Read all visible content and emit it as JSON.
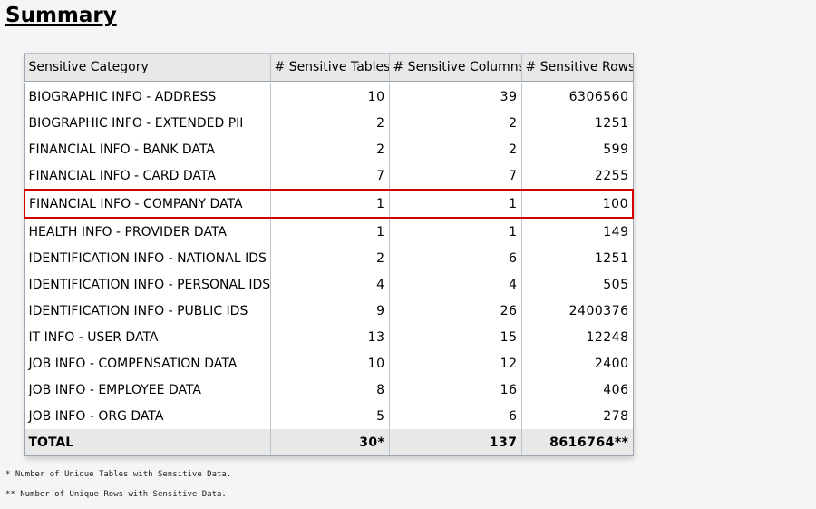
{
  "page": {
    "title": "Summary"
  },
  "table": {
    "headers": [
      "Sensitive Category",
      "# Sensitive Tables",
      "# Sensitive Columns",
      "# Sensitive Rows"
    ],
    "rows": [
      {
        "category": "BIOGRAPHIC INFO - ADDRESS",
        "tables": "10",
        "columns": "39",
        "rows": "6306560",
        "highlighted": false
      },
      {
        "category": "BIOGRAPHIC INFO - EXTENDED PII",
        "tables": "2",
        "columns": "2",
        "rows": "1251",
        "highlighted": false
      },
      {
        "category": "FINANCIAL INFO - BANK DATA",
        "tables": "2",
        "columns": "2",
        "rows": "599",
        "highlighted": false
      },
      {
        "category": "FINANCIAL INFO - CARD DATA",
        "tables": "7",
        "columns": "7",
        "rows": "2255",
        "highlighted": false
      },
      {
        "category": "FINANCIAL INFO - COMPANY DATA",
        "tables": "1",
        "columns": "1",
        "rows": "100",
        "highlighted": true
      },
      {
        "category": "HEALTH INFO - PROVIDER DATA",
        "tables": "1",
        "columns": "1",
        "rows": "149",
        "highlighted": false
      },
      {
        "category": "IDENTIFICATION INFO - NATIONAL IDS",
        "tables": "2",
        "columns": "6",
        "rows": "1251",
        "highlighted": false
      },
      {
        "category": "IDENTIFICATION INFO - PERSONAL IDS",
        "tables": "4",
        "columns": "4",
        "rows": "505",
        "highlighted": false
      },
      {
        "category": "IDENTIFICATION INFO - PUBLIC IDS",
        "tables": "9",
        "columns": "26",
        "rows": "2400376",
        "highlighted": false
      },
      {
        "category": "IT INFO - USER DATA",
        "tables": "13",
        "columns": "15",
        "rows": "12248",
        "highlighted": false
      },
      {
        "category": "JOB INFO - COMPENSATION DATA",
        "tables": "10",
        "columns": "12",
        "rows": "2400",
        "highlighted": false
      },
      {
        "category": "JOB INFO - EMPLOYEE DATA",
        "tables": "8",
        "columns": "16",
        "rows": "406",
        "highlighted": false
      },
      {
        "category": "JOB INFO - ORG DATA",
        "tables": "5",
        "columns": "6",
        "rows": "278",
        "highlighted": false
      }
    ],
    "total": {
      "category": "TOTAL",
      "tables": "30*",
      "columns": "137",
      "rows": "8616764**"
    },
    "highlight_color": "#d40000"
  },
  "footnotes": [
    "*  Number of Unique Tables with Sensitive Data.",
    "** Number of Unique Rows with Sensitive Data."
  ]
}
